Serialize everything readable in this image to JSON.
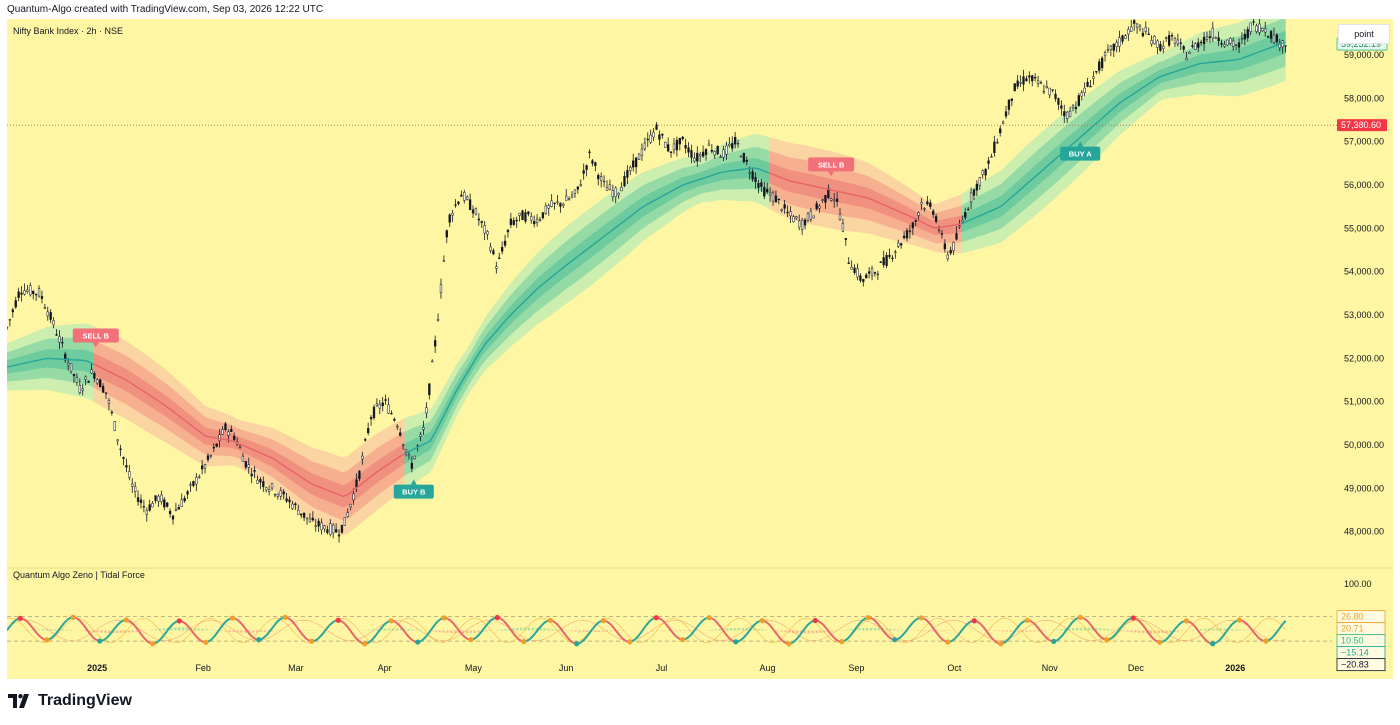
{
  "header": {
    "attribution": "Quantum-Algo created with TradingView.com, Sep 03, 2026 12:22 UTC"
  },
  "footer": {
    "brand": "TradingView"
  },
  "main_chart": {
    "symbol_title": "Nifty Bank Index · 2h · NSE",
    "scale_mode": "point"
  },
  "indicator": {
    "title": "Quantum Algo Zeno | Tidal Force"
  },
  "colors": {
    "background": "#fff6a3",
    "bull": "#26a69a",
    "bull_band_inner": "#7fd3a2",
    "bull_band_outer": "#c3ecb0",
    "bear": "#e8636a",
    "bear_band_inner": "#f3a089",
    "bear_band_outer": "#f9cfa1",
    "candle": "#131722",
    "price_tag_current": "#2ebd85",
    "price_tag_red": "#f23645",
    "signal_sell": "#f2707a",
    "signal_buy": "#26a69a",
    "osc_orange": "#f0a02a"
  },
  "icons": {
    "brand_logo": "tradingview-logo-icon"
  },
  "chart_data": [
    {
      "type": "line",
      "series_kind": "candlestick",
      "y_axis": {
        "ylim": [
          47600,
          59600
        ],
        "ticks": [
          48000,
          49000,
          50000,
          51000,
          52000,
          53000,
          54000,
          55000,
          56000,
          57000,
          58000,
          59000
        ],
        "tick_labels": [
          "48,000.00",
          "49,000.00",
          "50,000.00",
          "51,000.00",
          "52,000.00",
          "53,000.00",
          "54,000.00",
          "55,000.00",
          "56,000.00",
          "57,000.00",
          "58,000.00",
          "59,000.00"
        ]
      },
      "x_axis": {
        "xlim": [
          0,
          1
        ]
      },
      "current_price": {
        "value": 59252.19,
        "label": "59,252.19"
      },
      "level_line": {
        "value": 57380.6,
        "label": "57,380.60"
      },
      "price_path": [
        [
          0.0,
          52700
        ],
        [
          0.01,
          53600
        ],
        [
          0.025,
          53500
        ],
        [
          0.035,
          52800
        ],
        [
          0.045,
          52000
        ],
        [
          0.055,
          51300
        ],
        [
          0.065,
          51700
        ],
        [
          0.075,
          51200
        ],
        [
          0.085,
          50000
        ],
        [
          0.095,
          49000
        ],
        [
          0.105,
          48500
        ],
        [
          0.115,
          48800
        ],
        [
          0.125,
          48400
        ],
        [
          0.135,
          48800
        ],
        [
          0.145,
          49300
        ],
        [
          0.155,
          49800
        ],
        [
          0.165,
          50400
        ],
        [
          0.172,
          50200
        ],
        [
          0.18,
          49600
        ],
        [
          0.19,
          49200
        ],
        [
          0.2,
          49000
        ],
        [
          0.21,
          48800
        ],
        [
          0.22,
          48500
        ],
        [
          0.23,
          48200
        ],
        [
          0.24,
          48100
        ],
        [
          0.25,
          48000
        ],
        [
          0.255,
          48200
        ],
        [
          0.265,
          49200
        ],
        [
          0.275,
          50700
        ],
        [
          0.285,
          51000
        ],
        [
          0.295,
          50500
        ],
        [
          0.305,
          49500
        ],
        [
          0.315,
          50400
        ],
        [
          0.323,
          52300
        ],
        [
          0.333,
          55200
        ],
        [
          0.343,
          55800
        ],
        [
          0.353,
          55400
        ],
        [
          0.363,
          54800
        ],
        [
          0.37,
          54100
        ],
        [
          0.38,
          55100
        ],
        [
          0.39,
          55300
        ],
        [
          0.4,
          55200
        ],
        [
          0.41,
          55500
        ],
        [
          0.42,
          55600
        ],
        [
          0.43,
          55800
        ],
        [
          0.44,
          56700
        ],
        [
          0.45,
          56000
        ],
        [
          0.46,
          55800
        ],
        [
          0.47,
          56300
        ],
        [
          0.48,
          56800
        ],
        [
          0.49,
          57300
        ],
        [
          0.5,
          56800
        ],
        [
          0.51,
          57000
        ],
        [
          0.52,
          56600
        ],
        [
          0.53,
          56900
        ],
        [
          0.54,
          56700
        ],
        [
          0.55,
          57000
        ],
        [
          0.56,
          56400
        ],
        [
          0.57,
          55900
        ],
        [
          0.58,
          55700
        ],
        [
          0.59,
          55300
        ],
        [
          0.6,
          55100
        ],
        [
          0.61,
          55400
        ],
        [
          0.62,
          55800
        ],
        [
          0.625,
          55700
        ],
        [
          0.63,
          55200
        ],
        [
          0.635,
          54300
        ],
        [
          0.645,
          53800
        ],
        [
          0.655,
          54000
        ],
        [
          0.665,
          54300
        ],
        [
          0.675,
          54700
        ],
        [
          0.685,
          55100
        ],
        [
          0.69,
          55600
        ],
        [
          0.7,
          55400
        ],
        [
          0.705,
          54800
        ],
        [
          0.71,
          54400
        ],
        [
          0.715,
          54600
        ],
        [
          0.72,
          55100
        ],
        [
          0.73,
          55900
        ],
        [
          0.74,
          56400
        ],
        [
          0.75,
          57300
        ],
        [
          0.76,
          58200
        ],
        [
          0.77,
          58500
        ],
        [
          0.78,
          58300
        ],
        [
          0.79,
          58100
        ],
        [
          0.8,
          57600
        ],
        [
          0.81,
          58000
        ],
        [
          0.82,
          58500
        ],
        [
          0.83,
          59000
        ],
        [
          0.84,
          59300
        ],
        [
          0.85,
          59700
        ],
        [
          0.86,
          59500
        ],
        [
          0.87,
          59200
        ],
        [
          0.88,
          59400
        ],
        [
          0.89,
          59000
        ],
        [
          0.9,
          59300
        ],
        [
          0.91,
          59500
        ],
        [
          0.92,
          59300
        ],
        [
          0.93,
          59200
        ],
        [
          0.94,
          59700
        ],
        [
          0.95,
          59600
        ],
        [
          0.96,
          59300
        ],
        [
          0.965,
          59250
        ]
      ],
      "tidal_band_midline": [
        [
          0.0,
          51800
        ],
        [
          0.03,
          52000
        ],
        [
          0.06,
          51950
        ],
        [
          0.09,
          51500
        ],
        [
          0.12,
          50900
        ],
        [
          0.15,
          50200
        ],
        [
          0.17,
          50100
        ],
        [
          0.2,
          49700
        ],
        [
          0.23,
          49100
        ],
        [
          0.255,
          48800
        ],
        [
          0.28,
          49400
        ],
        [
          0.3,
          49800
        ],
        [
          0.32,
          50100
        ],
        [
          0.34,
          51300
        ],
        [
          0.36,
          52300
        ],
        [
          0.38,
          53000
        ],
        [
          0.4,
          53600
        ],
        [
          0.42,
          54100
        ],
        [
          0.45,
          54800
        ],
        [
          0.48,
          55500
        ],
        [
          0.51,
          56000
        ],
        [
          0.54,
          56300
        ],
        [
          0.565,
          56400
        ],
        [
          0.59,
          56100
        ],
        [
          0.62,
          55900
        ],
        [
          0.65,
          55700
        ],
        [
          0.68,
          55300
        ],
        [
          0.7,
          55000
        ],
        [
          0.72,
          55100
        ],
        [
          0.75,
          55500
        ],
        [
          0.78,
          56300
        ],
        [
          0.81,
          57100
        ],
        [
          0.84,
          57900
        ],
        [
          0.87,
          58500
        ],
        [
          0.9,
          58800
        ],
        [
          0.93,
          58900
        ],
        [
          0.965,
          59300
        ]
      ],
      "trend_segments": [
        {
          "from": 0.0,
          "to": 0.065,
          "trend": "bull"
        },
        {
          "from": 0.065,
          "to": 0.3,
          "trend": "bear"
        },
        {
          "from": 0.3,
          "to": 0.575,
          "trend": "bull"
        },
        {
          "from": 0.575,
          "to": 0.72,
          "trend": "bear"
        },
        {
          "from": 0.72,
          "to": 0.965,
          "trend": "bull"
        }
      ],
      "annotations": [
        {
          "text": "SELL B",
          "x": 0.067,
          "y": 52250,
          "kind": "sell"
        },
        {
          "text": "BUY B",
          "x": 0.307,
          "y": 49200,
          "kind": "buy"
        },
        {
          "text": "SELL B",
          "x": 0.622,
          "y": 56200,
          "kind": "sell"
        },
        {
          "text": "BUY A",
          "x": 0.81,
          "y": 57000,
          "kind": "buy"
        }
      ],
      "x_tick_labels": [
        {
          "label": "2025",
          "x": 0.068,
          "bold": true
        },
        {
          "label": "Feb",
          "x": 0.148
        },
        {
          "label": "Mar",
          "x": 0.218
        },
        {
          "label": "Apr",
          "x": 0.285
        },
        {
          "label": "May",
          "x": 0.352
        },
        {
          "label": "Jun",
          "x": 0.422
        },
        {
          "label": "Jul",
          "x": 0.494
        },
        {
          "label": "Aug",
          "x": 0.574
        },
        {
          "label": "Sep",
          "x": 0.641
        },
        {
          "label": "Oct",
          "x": 0.715
        },
        {
          "label": "Nov",
          "x": 0.787
        },
        {
          "label": "Dec",
          "x": 0.852
        },
        {
          "label": "2026",
          "x": 0.927,
          "bold": true
        }
      ]
    },
    {
      "type": "line",
      "title": "Quantum Algo Zeno | Tidal Force",
      "ylim": [
        -40,
        100
      ],
      "top_tick_label": "100.00",
      "levels": [
        26.8,
        -20.83
      ],
      "value_tags": [
        {
          "label": "26.80",
          "value": 26.8,
          "color": "#f0a02a"
        },
        {
          "label": "20.71",
          "value": 20.71,
          "color": "#f0a02a"
        },
        {
          "label": "10.50",
          "value": 10.5,
          "color": "#2ebd85"
        },
        {
          "label": "−15.14",
          "value": -15.14,
          "color": "#26a69a"
        },
        {
          "label": "−20.83",
          "value": -20.83,
          "color": "#131722"
        }
      ],
      "oscillator_amplitude": 22,
      "oscillator_period_fraction": 0.04
    }
  ]
}
